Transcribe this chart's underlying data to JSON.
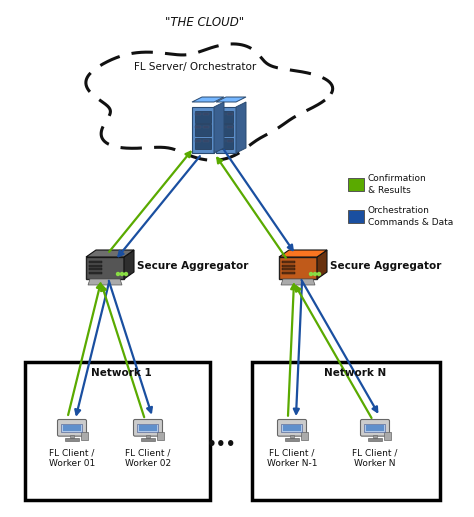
{
  "title": "\"THE CLOUD\"",
  "cloud_label": "FL Server/ Orchestrator",
  "agg_left_label": "Secure Aggregator",
  "agg_right_label": "Secure Aggregator",
  "network1_label": "Network 1",
  "networkN_label": "Network N",
  "clients": [
    "FL Client /\nWorker 01",
    "FL Client /\nWorker 02",
    "FL Client /\nWorker N-1",
    "FL Client /\nWorker N"
  ],
  "dots": "•••",
  "legend_green_label": "Confirmation\n& Results",
  "legend_blue_label": "Orchestration\nCommands & Data",
  "arrow_green": "#5aaa00",
  "arrow_blue": "#1a4fa0",
  "server_color": "#5b8dc8",
  "server_dark": "#3a6090",
  "server_darker": "#2a4a70",
  "agg_left_color": "#555555",
  "agg_left_dark": "#333333",
  "agg_right_color": "#c05a1a",
  "agg_right_dark": "#8a3a0a",
  "client_color": "#6090cc",
  "client_light": "#b0c8e8",
  "bg_color": "#ffffff",
  "cloud_dash_color": "#111111",
  "title_fontsize": 8.5,
  "label_fontsize": 7.5,
  "small_fontsize": 6.5
}
